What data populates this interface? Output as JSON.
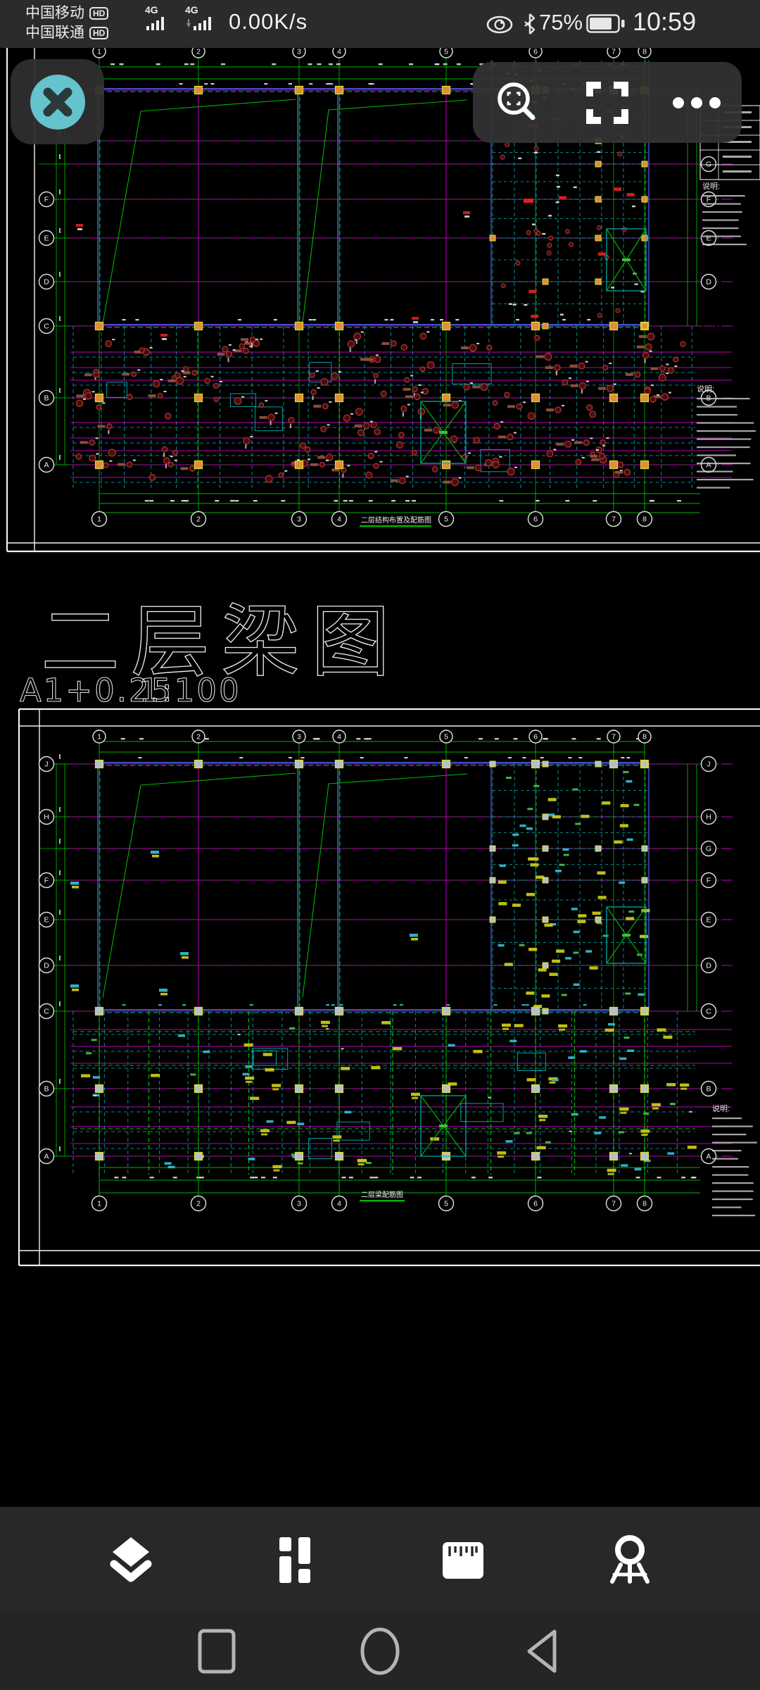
{
  "status_bar": {
    "carriers": [
      {
        "name": "中国移动",
        "badge": "HD"
      },
      {
        "name": "中国联通",
        "badge": "HD"
      }
    ],
    "networks": [
      "4G",
      "4G"
    ],
    "net_speed": "0.00K/s",
    "battery_percent": "75%",
    "time": "10:59"
  },
  "divider_label": {
    "big_title": "二层梁图",
    "sheet_spec": "A1+0.25",
    "scale": "1:100"
  },
  "sheet_top": {
    "title": "二层结构布置及配筋图",
    "notes_header": "说明:",
    "col_labels": [
      "1",
      "2",
      "3",
      "4",
      "5",
      "6",
      "7",
      "8"
    ],
    "row_labels_left": [
      "F",
      "E",
      "D",
      "C",
      "B",
      "A"
    ],
    "row_labels_right": [
      "G",
      "F",
      "E",
      "D",
      "B",
      "A"
    ]
  },
  "sheet_bottom": {
    "title": "二层梁配筋图",
    "notes_header": "说明:",
    "col_labels": [
      "1",
      "2",
      "3",
      "4",
      "5",
      "6",
      "7",
      "8"
    ],
    "row_labels_left": [
      "J",
      "H",
      "F",
      "E",
      "D",
      "C",
      "B",
      "A"
    ],
    "row_labels_right": [
      "J",
      "H",
      "G",
      "F",
      "E",
      "D",
      "C",
      "B",
      "A"
    ]
  },
  "colors": {
    "axis_green": "#00b400",
    "grid_magenta": "#bb00bb",
    "beam_cyan": "#00b4b4",
    "beam_blue": "#5055e8",
    "column_orange": "#dd8f3c",
    "column_outline_yellow": "#e3da2c",
    "column_gray": "#b4c2c8",
    "pile_dark_red": "#4a0d0d",
    "pile_ring_red": "#b03434",
    "label_yellow": "#c9c916",
    "label_cyan": "#35b9cb",
    "label_green": "#4ec24e",
    "label_red": "#e02020",
    "hatch_brown": "#93503d",
    "accent_teal": "#64c3cd"
  }
}
